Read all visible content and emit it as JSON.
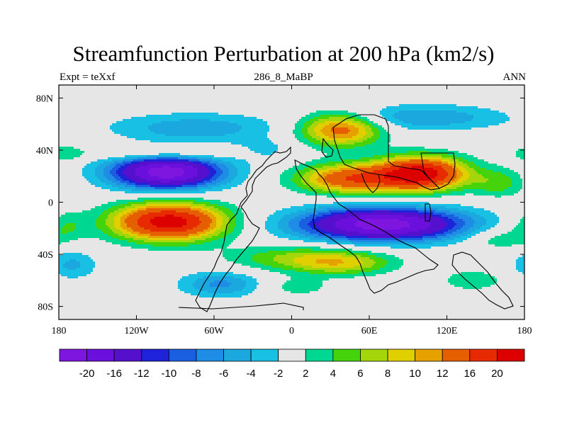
{
  "chart_data": {
    "type": "heatmap",
    "title": "Streamfunction Perturbation at 200 hPa (km2/s)",
    "subtitle_left": "Expt = teXxf",
    "subtitle_center": "286_8_MaBP",
    "subtitle_right": "ANN",
    "x_range": [
      -180,
      180
    ],
    "y_range": [
      -90,
      90
    ],
    "x_ticks": [
      {
        "value": -180,
        "label": "180"
      },
      {
        "value": -120,
        "label": "120W"
      },
      {
        "value": -60,
        "label": "60W"
      },
      {
        "value": 0,
        "label": "0"
      },
      {
        "value": 60,
        "label": "60E"
      },
      {
        "value": 120,
        "label": "120E"
      },
      {
        "value": 180,
        "label": "180"
      }
    ],
    "y_ticks": [
      {
        "value": 80,
        "label": "80N"
      },
      {
        "value": 40,
        "label": "40N"
      },
      {
        "value": 0,
        "label": "0"
      },
      {
        "value": -40,
        "label": "40S"
      },
      {
        "value": -80,
        "label": "80S"
      }
    ],
    "colorbar_levels": [
      "-20",
      "-16",
      "-12",
      "-10",
      "-8",
      "-6",
      "-4",
      "-2",
      "2",
      "4",
      "6",
      "8",
      "10",
      "12",
      "16",
      "20"
    ],
    "colorbar_colors": [
      "#7f16e0",
      "#6a0fdc",
      "#5410cc",
      "#1e22d8",
      "#1a5fe0",
      "#1f8ce6",
      "#1aa8df",
      "#18c0e4",
      "#e6e6e6",
      "#00d790",
      "#45d40c",
      "#a5d60c",
      "#e0d000",
      "#e6a000",
      "#e55f00",
      "#e82a00",
      "#dd0000"
    ],
    "contour_levels": [
      -20,
      -16,
      -12,
      -10,
      -8,
      -6,
      -4,
      -2,
      2,
      4,
      6,
      8,
      10,
      12,
      16,
      20
    ],
    "field_centers": [
      {
        "lon": -97,
        "lat": 23,
        "amplitude": -22.5,
        "sigma_lon": 30,
        "sigma_lat": 9
      },
      {
        "lon": -95,
        "lat": -15,
        "amplitude": 22.5,
        "sigma_lon": 30,
        "sigma_lat": 10
      },
      {
        "lon": 70,
        "lat": -17,
        "amplitude": -22.5,
        "sigma_lon": 45,
        "sigma_lat": 9
      },
      {
        "lon": 45,
        "lat": 18,
        "amplitude": 15,
        "sigma_lon": 28,
        "sigma_lat": 8
      },
      {
        "lon": 100,
        "lat": 22,
        "amplitude": 22.5,
        "sigma_lon": 24,
        "sigma_lat": 9
      },
      {
        "lon": 38,
        "lat": 56,
        "amplitude": 14,
        "sigma_lon": 22,
        "sigma_lat": 9
      },
      {
        "lon": -75,
        "lat": 57,
        "amplitude": -5.5,
        "sigma_lon": 45,
        "sigma_lat": 8
      },
      {
        "lon": 100,
        "lat": 65,
        "amplitude": -6,
        "sigma_lon": 45,
        "sigma_lat": 7
      },
      {
        "lon": -55,
        "lat": -63,
        "amplitude": -6.5,
        "sigma_lon": 22,
        "sigma_lat": 7
      },
      {
        "lon": 12,
        "lat": -43,
        "amplitude": 7,
        "sigma_lon": 40,
        "sigma_lat": 7
      },
      {
        "lon": 40,
        "lat": -48,
        "amplitude": 5.5,
        "sigma_lon": 26,
        "sigma_lat": 6
      },
      {
        "lon": 5,
        "lat": -65,
        "amplitude": 3.2,
        "sigma_lon": 18,
        "sigma_lat": 5
      },
      {
        "lon": 140,
        "lat": -60,
        "amplitude": 3.5,
        "sigma_lon": 18,
        "sigma_lat": 6
      },
      {
        "lon": 160,
        "lat": 15,
        "amplitude": 5,
        "sigma_lon": 15,
        "sigma_lat": 8
      },
      {
        "lon": -175,
        "lat": 37,
        "amplitude": 3,
        "sigma_lon": 10,
        "sigma_lat": 5
      },
      {
        "lon": -170,
        "lat": -48,
        "amplitude": -4.5,
        "sigma_lon": 14,
        "sigma_lat": 8
      },
      {
        "lon": 160,
        "lat": -28,
        "amplitude": 4,
        "sigma_lon": 18,
        "sigma_lat": 6
      },
      {
        "lon": -175,
        "lat": -18,
        "amplitude": 4,
        "sigma_lon": 12,
        "sigma_lat": 8
      },
      {
        "lon": -20,
        "lat": 40,
        "amplitude": -2.8,
        "sigma_lon": 18,
        "sigma_lat": 6
      },
      {
        "lon": -100,
        "lat": 38,
        "amplitude": 5,
        "sigma_lon": 40,
        "sigma_lat": 4
      }
    ]
  }
}
